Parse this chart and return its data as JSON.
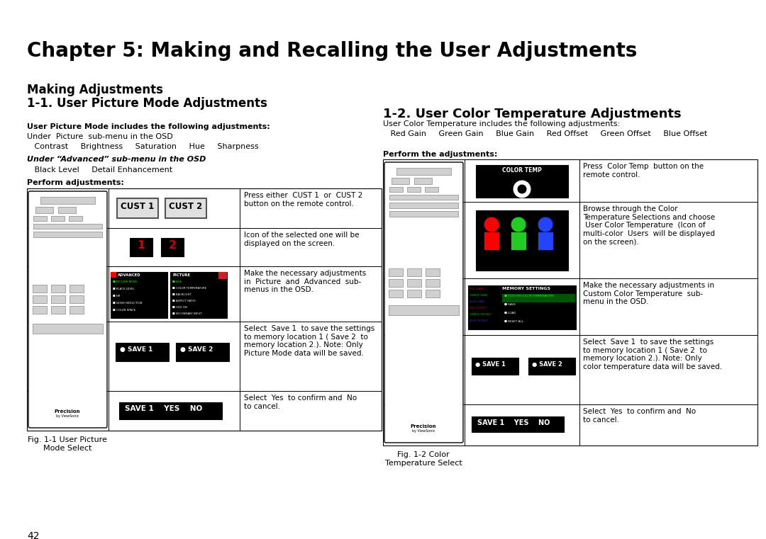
{
  "title": "Chapter 5: Making and Recalling the User Adjustments",
  "s1_line1": "Making Adjustments",
  "s1_line2": "1-1. User Picture Mode Adjustments",
  "s2_title": "1-2. User Color Temperature Adjustments",
  "bold1": "User Picture Mode includes the following adjustments:",
  "sub1": "Under  Picture  sub-menu in the OSD",
  "items1": "   Contrast     Brightness     Saturation     Hue     Sharpness",
  "bold2": "Under “Advanced” sub-menu in the OSD",
  "items2": "   Black Level     Detail Enhancement",
  "perform1": "Perform adjustments:",
  "bold3": "User Color Temperature includes the following adjustments:",
  "items3": "   Red Gain     Green Gain     Blue Gain     Red Offset     Green Offset     Blue Offset",
  "perform2": "Perform the adjustments:",
  "fig1_line1": "Fig. 1-1 User Picture",
  "fig1_line2": "Mode Select",
  "fig2_line1": "Fig. 1-2 Color",
  "fig2_line2": "Temperature Select",
  "page_num": "42",
  "t1_texts": [
    "Press either  CUST 1  or  CUST 2\nbutton on the remote control.",
    "Icon of the selected one will be\ndisplayed on the screen.",
    "Make the necessary adjustments\nin  Picture  and  Advanced  sub-\nmenus in the OSD.",
    "Select  Save 1  to save the settings\nto memory location 1 ( Save 2  to\nmemory location 2.). Note: Only\nPicture Mode data will be saved.",
    "Select  Yes  to confirm and  No\nto cancel."
  ],
  "t2_texts": [
    "Press  Color Temp  button on the\nremote control.",
    "Browse through the Color\nTemperature Selections and choose\n User Color Temperature  (Icon of\nmulti-color  Users  will be displayed\non the screen).",
    "Make the necessary adjustments in\nCustom Color Temperature  sub-\nmenu in the OSD.",
    "Select  Save 1  to save the settings\nto memory location 1 ( Save 2  to\nmemory location 2.). Note: Only\ncolor temperature data will be saved.",
    "Select  Yes  to confirm and  No\nto cancel."
  ],
  "adv_items": [
    "PICTURE MODE",
    "BLACK LEVEL",
    "NR",
    "NOISE REDUCTION",
    "COLOR SPACE"
  ],
  "pic_items": [
    "HUE",
    "COLOR TEMPERATURE",
    "BACKLIGHT",
    "ASPECT RATIO",
    "OSD ON",
    "SECONDARY INPUT"
  ],
  "mem_items": [
    "CUSTOM COLOR TEMPERATURE",
    "SAVE",
    "LOAD",
    "RESET ALL"
  ],
  "left_labels": [
    "RED GAIN",
    "GREEN GAIN",
    "BLUE GAIN",
    "RED OFFSET",
    "GREEN OFFSET",
    "BLUE OFFSET"
  ],
  "left_colors": [
    "#cc0000",
    "#00bb00",
    "#3333cc",
    "#cc0000",
    "#00bb00",
    "#3333cc"
  ]
}
